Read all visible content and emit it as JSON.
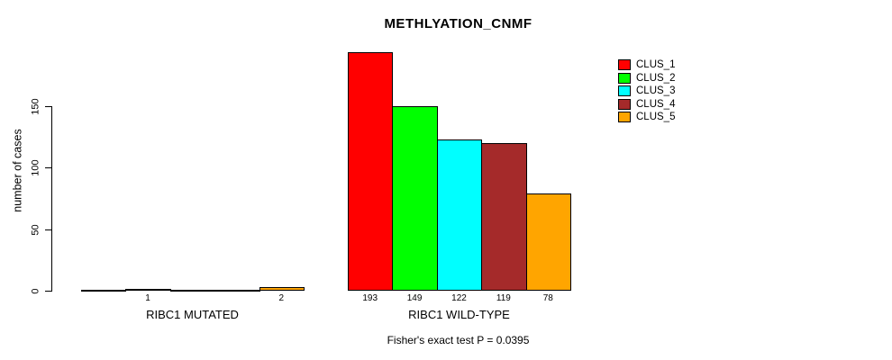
{
  "chart_data": {
    "type": "bar",
    "title": "METHLYATION_CNMF",
    "ylabel": "number of cases",
    "xlabel": "",
    "yticks": [
      "0",
      "50",
      "100",
      "150"
    ],
    "ytick_values": [
      0,
      50,
      100,
      150
    ],
    "ylim": [
      0,
      200
    ],
    "grid": false,
    "legend_position": "right",
    "bar_border_color": "#000000",
    "clusters": [
      "CLUS_1",
      "CLUS_2",
      "CLUS_3",
      "CLUS_4",
      "CLUS_5"
    ],
    "colors": [
      "#FF0000",
      "#00FF00",
      "#00FFFF",
      "#A52A2A",
      "#FFA500"
    ],
    "groups": [
      {
        "label": "RIBC1 MUTATED",
        "values": [
          0,
          1,
          0,
          0,
          2
        ],
        "bar_labels": [
          "",
          "1",
          "",
          "",
          "2"
        ]
      },
      {
        "label": "RIBC1 WILD-TYPE",
        "values": [
          193,
          149,
          122,
          119,
          78
        ],
        "bar_labels": [
          "193",
          "149",
          "122",
          "119",
          "78"
        ]
      }
    ],
    "annotation": "Fisher's exact test P = 0.0395"
  }
}
